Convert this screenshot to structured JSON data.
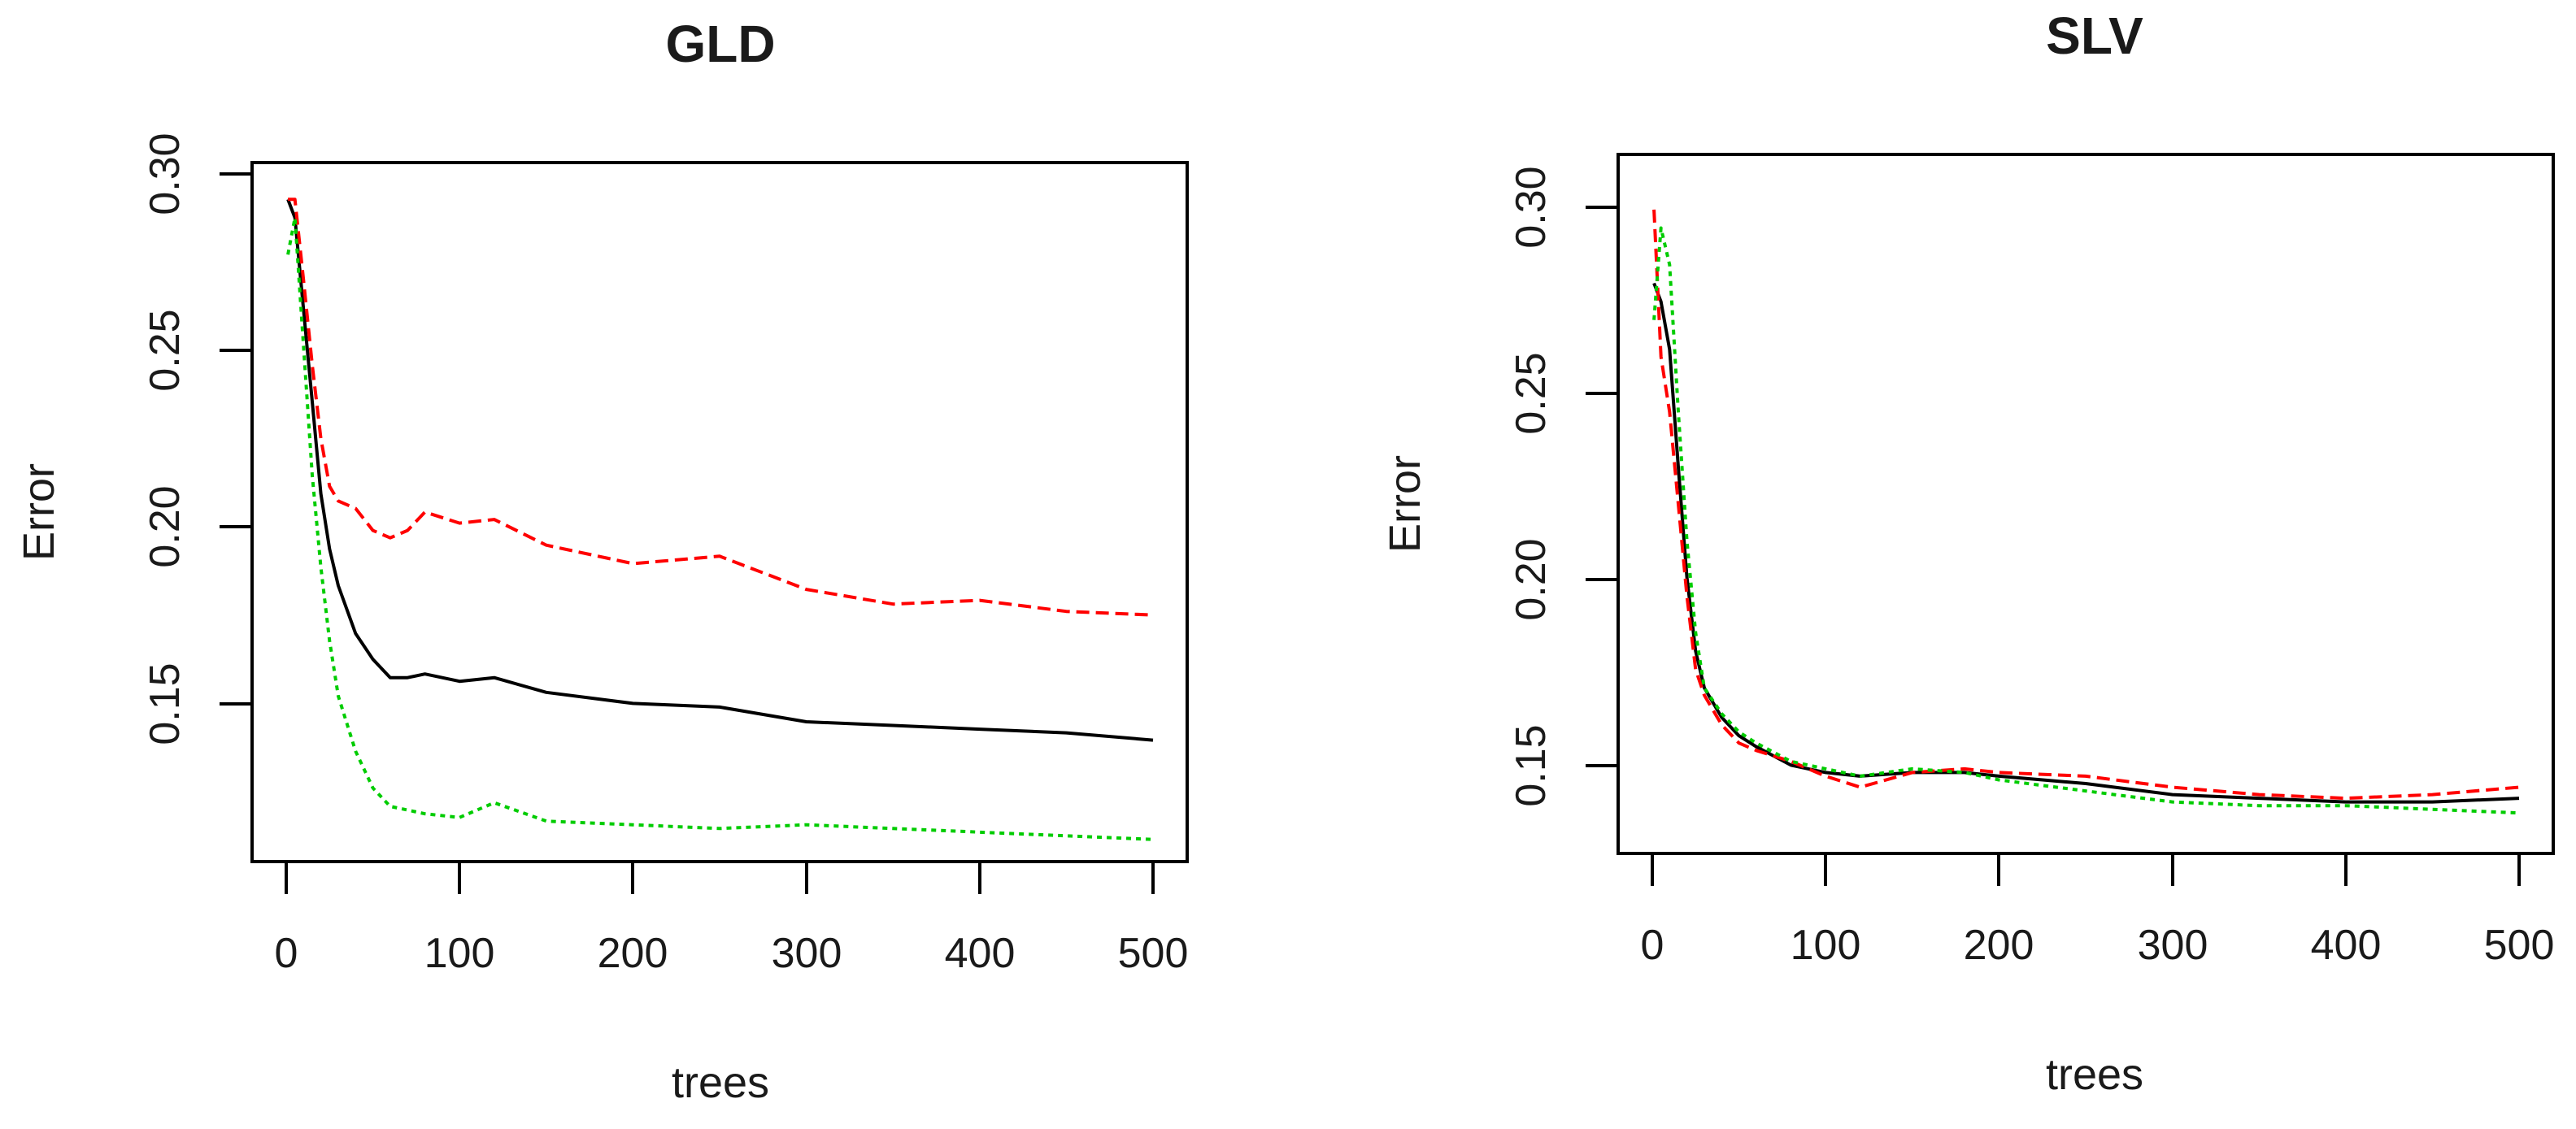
{
  "chart_data": [
    {
      "type": "line",
      "title": "GLD",
      "xlabel": "trees",
      "ylabel": "Error",
      "xlim": [
        0,
        500
      ],
      "ylim": [
        0.11,
        0.3
      ],
      "x_ticks": [
        "0",
        "100",
        "200",
        "300",
        "400",
        "500"
      ],
      "y_ticks": [
        "0.15",
        "0.20",
        "0.25",
        "0.30"
      ],
      "grid": false,
      "legend": "none",
      "series": [
        {
          "color": "#000000",
          "dash": "solid",
          "x": [
            1,
            5,
            10,
            15,
            20,
            25,
            30,
            40,
            50,
            60,
            70,
            80,
            100,
            120,
            150,
            200,
            250,
            300,
            350,
            400,
            450,
            500
          ],
          "values": [
            0.29,
            0.285,
            0.26,
            0.235,
            0.21,
            0.195,
            0.185,
            0.172,
            0.165,
            0.16,
            0.16,
            0.161,
            0.159,
            0.16,
            0.156,
            0.153,
            0.152,
            0.148,
            0.147,
            0.146,
            0.145,
            0.143
          ]
        },
        {
          "color": "#ff0000",
          "dash": "dashed",
          "x": [
            1,
            5,
            10,
            15,
            20,
            25,
            30,
            40,
            50,
            60,
            70,
            80,
            100,
            120,
            150,
            200,
            250,
            300,
            350,
            400,
            450,
            500
          ],
          "values": [
            0.29,
            0.29,
            0.268,
            0.245,
            0.225,
            0.212,
            0.208,
            0.206,
            0.2,
            0.198,
            0.2,
            0.205,
            0.202,
            0.203,
            0.196,
            0.191,
            0.193,
            0.184,
            0.18,
            0.181,
            0.178,
            0.177
          ]
        },
        {
          "color": "#00cc00",
          "dash": "dotted",
          "x": [
            1,
            5,
            10,
            15,
            20,
            25,
            30,
            40,
            50,
            60,
            70,
            80,
            100,
            120,
            150,
            200,
            250,
            300,
            350,
            400,
            450,
            500
          ],
          "values": [
            0.275,
            0.285,
            0.25,
            0.215,
            0.19,
            0.17,
            0.155,
            0.14,
            0.13,
            0.125,
            0.124,
            0.123,
            0.122,
            0.126,
            0.121,
            0.12,
            0.119,
            0.12,
            0.119,
            0.118,
            0.117,
            0.116
          ]
        }
      ]
    },
    {
      "type": "line",
      "title": "SLV",
      "xlabel": "trees",
      "ylabel": "Error",
      "xlim": [
        0,
        500
      ],
      "ylim": [
        0.125,
        0.315
      ],
      "x_ticks": [
        "0",
        "100",
        "200",
        "300",
        "400",
        "500"
      ],
      "y_ticks": [
        "0.15",
        "0.20",
        "0.25",
        "0.30"
      ],
      "grid": false,
      "legend": "none",
      "series": [
        {
          "color": "#000000",
          "dash": "solid",
          "x": [
            1,
            5,
            10,
            15,
            20,
            25,
            30,
            40,
            50,
            60,
            80,
            100,
            120,
            150,
            180,
            200,
            250,
            300,
            350,
            400,
            450,
            500
          ],
          "values": [
            0.28,
            0.275,
            0.262,
            0.23,
            0.2,
            0.18,
            0.17,
            0.162,
            0.157,
            0.154,
            0.149,
            0.147,
            0.146,
            0.147,
            0.147,
            0.146,
            0.144,
            0.141,
            0.14,
            0.139,
            0.139,
            0.14
          ]
        },
        {
          "color": "#ff0000",
          "dash": "dashed",
          "x": [
            1,
            5,
            10,
            15,
            20,
            25,
            30,
            40,
            50,
            60,
            80,
            100,
            120,
            150,
            180,
            200,
            250,
            300,
            350,
            400,
            450,
            500
          ],
          "values": [
            0.3,
            0.26,
            0.245,
            0.22,
            0.195,
            0.175,
            0.168,
            0.16,
            0.155,
            0.153,
            0.15,
            0.146,
            0.143,
            0.147,
            0.148,
            0.147,
            0.146,
            0.143,
            0.141,
            0.14,
            0.141,
            0.143
          ]
        },
        {
          "color": "#00cc00",
          "dash": "dotted",
          "x": [
            1,
            5,
            10,
            15,
            20,
            25,
            30,
            40,
            50,
            60,
            80,
            100,
            120,
            150,
            180,
            200,
            250,
            300,
            350,
            400,
            450,
            500
          ],
          "values": [
            0.27,
            0.295,
            0.285,
            0.245,
            0.21,
            0.185,
            0.17,
            0.163,
            0.158,
            0.155,
            0.15,
            0.148,
            0.146,
            0.148,
            0.147,
            0.145,
            0.142,
            0.139,
            0.138,
            0.138,
            0.137,
            0.136
          ]
        }
      ]
    }
  ]
}
